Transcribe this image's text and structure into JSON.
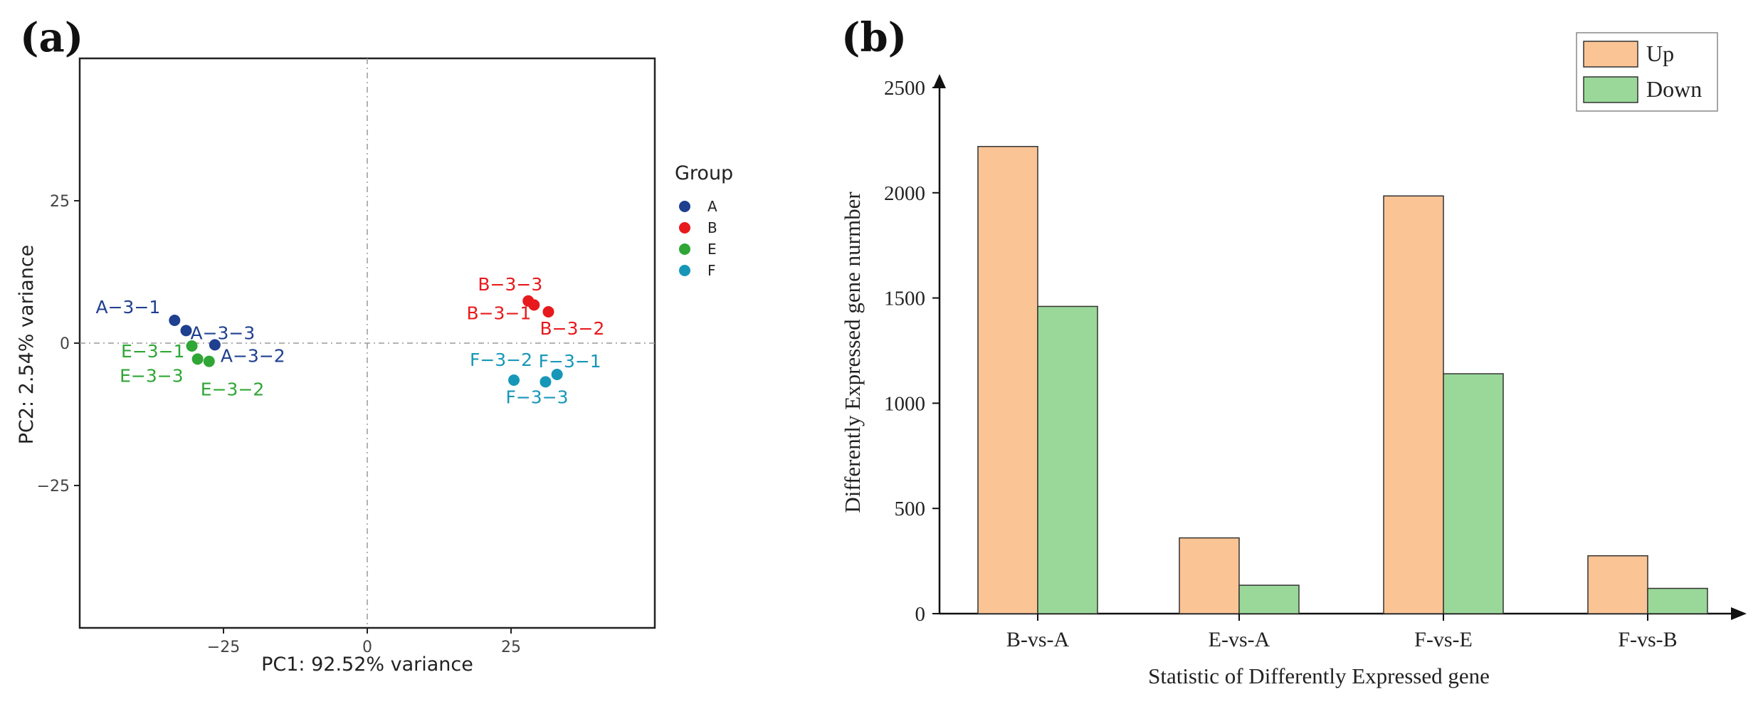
{
  "chart_data": [
    {
      "panel_label": "(a)",
      "type": "scatter",
      "xlabel": "PC1: 92.52% variance",
      "ylabel": "PC2: 2.54% variance",
      "xlim": [
        -50,
        50
      ],
      "ylim": [
        -50,
        50
      ],
      "xticks": [
        -25,
        0,
        25
      ],
      "yticks": [
        25,
        0,
        -25
      ],
      "reference_lines": [
        "x = 0",
        "y = 0"
      ],
      "legend": {
        "title": "Group",
        "placement": "right",
        "entries": [
          {
            "name": "A",
            "color": "#1f3f8f"
          },
          {
            "name": "B",
            "color": "#e8191c"
          },
          {
            "name": "E",
            "color": "#2fa636"
          },
          {
            "name": "F",
            "color": "#1797b8"
          }
        ]
      },
      "points": [
        {
          "label": "A−3−1",
          "group": "A",
          "x": -33.5,
          "y": 4
        },
        {
          "label": "A−3−3",
          "group": "A",
          "x": -31.5,
          "y": 2.2
        },
        {
          "label": "A−3−2",
          "group": "A",
          "x": -26.5,
          "y": -0.3
        },
        {
          "label": "B−3−3",
          "group": "B",
          "x": 28,
          "y": 7.4
        },
        {
          "label": "B−3−1",
          "group": "B",
          "x": 29,
          "y": 6.7
        },
        {
          "label": "B−3−2",
          "group": "B",
          "x": 31.5,
          "y": 5.5
        },
        {
          "label": "E−3−1",
          "group": "E",
          "x": -30.5,
          "y": -0.5
        },
        {
          "label": "E−3−3",
          "group": "E",
          "x": -29.5,
          "y": -2.8
        },
        {
          "label": "E−3−2",
          "group": "E",
          "x": -27.5,
          "y": -3.2
        },
        {
          "label": "F−3−1",
          "group": "F",
          "x": 33,
          "y": -5.5
        },
        {
          "label": "F−3−2",
          "group": "F",
          "x": 25.5,
          "y": -6.5
        },
        {
          "label": "F−3−3",
          "group": "F",
          "x": 31,
          "y": -6.8
        }
      ]
    },
    {
      "panel_label": "(b)",
      "type": "bar",
      "xlabel": "Statistic of Differently Expressed gene",
      "ylabel": "Differently Expressed gene nurmber",
      "categories": [
        "B-vs-A",
        "E-vs-A",
        "F-vs-E",
        "F-vs-B"
      ],
      "ylim": [
        0,
        2500
      ],
      "yticks": [
        0,
        500,
        1000,
        1500,
        2000,
        2500
      ],
      "legend_placement": "top-right",
      "series": [
        {
          "name": "Up",
          "color": "#fbc495",
          "values": [
            2220,
            360,
            1985,
            275
          ]
        },
        {
          "name": "Down",
          "color": "#9ad89a",
          "values": [
            1460,
            135,
            1140,
            120
          ]
        }
      ]
    }
  ]
}
